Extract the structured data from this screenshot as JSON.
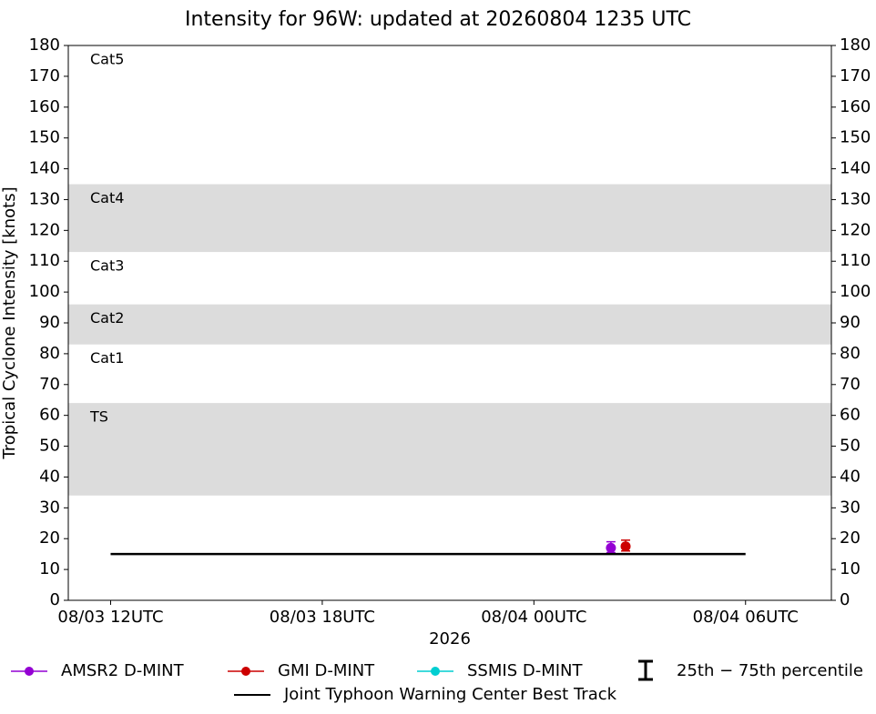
{
  "chart_data": {
    "type": "line",
    "title": "Intensity for 96W: updated at 20260804 1235 UTC",
    "xlabel": "2026",
    "ylabel": "Tropical Cyclone Intensity [knots]",
    "xlim": [
      "2026-08-03T10:48",
      "2026-08-04T08:26"
    ],
    "xticks": [
      {
        "value": "2026-08-03T12:00",
        "label": "08/03 12UTC"
      },
      {
        "value": "2026-08-03T18:00",
        "label": "08/03 18UTC"
      },
      {
        "value": "2026-08-04T00:00",
        "label": "08/04 00UTC"
      },
      {
        "value": "2026-08-04T06:00",
        "label": "08/04 06UTC"
      }
    ],
    "ylim": [
      0,
      180
    ],
    "yticks": [
      0,
      10,
      20,
      30,
      40,
      50,
      60,
      70,
      80,
      90,
      100,
      110,
      120,
      130,
      140,
      150,
      160,
      170,
      180
    ],
    "intensity_categories": [
      {
        "label": "TS",
        "min": 34,
        "max": 64,
        "shaded": true
      },
      {
        "label": "Cat1",
        "min": 64,
        "max": 83,
        "shaded": false
      },
      {
        "label": "Cat2",
        "min": 83,
        "max": 96,
        "shaded": true
      },
      {
        "label": "Cat3",
        "min": 96,
        "max": 113,
        "shaded": false
      },
      {
        "label": "Cat4",
        "min": 113,
        "max": 135,
        "shaded": true
      },
      {
        "label": "Cat5",
        "min": 135,
        "max": 180,
        "shaded": false
      }
    ],
    "series": [
      {
        "name": "AMSR2 D-MINT",
        "color": "#9400d3",
        "marker": true,
        "x": [
          "2026-08-04T02:11"
        ],
        "values": [
          17
        ],
        "p25": [
          15.5
        ],
        "p75": [
          19
        ]
      },
      {
        "name": "GMI D-MINT",
        "color": "#cc0000",
        "marker": true,
        "x": [
          "2026-08-04T02:36"
        ],
        "values": [
          17.5
        ],
        "p25": [
          16
        ],
        "p75": [
          19.5
        ]
      },
      {
        "name": "SSMIS D-MINT",
        "color": "#00ced1",
        "marker": true,
        "x": [],
        "values": [],
        "p25": [],
        "p75": []
      },
      {
        "name": "Joint Typhoon Warning Center Best Track",
        "color": "#000000",
        "marker": false,
        "x": [
          "2026-08-03T12:00",
          "2026-08-03T18:00",
          "2026-08-04T00:00",
          "2026-08-04T06:00"
        ],
        "values": [
          15,
          15,
          15,
          15
        ]
      }
    ],
    "percentile_legend": "25th − 75th percentile"
  }
}
